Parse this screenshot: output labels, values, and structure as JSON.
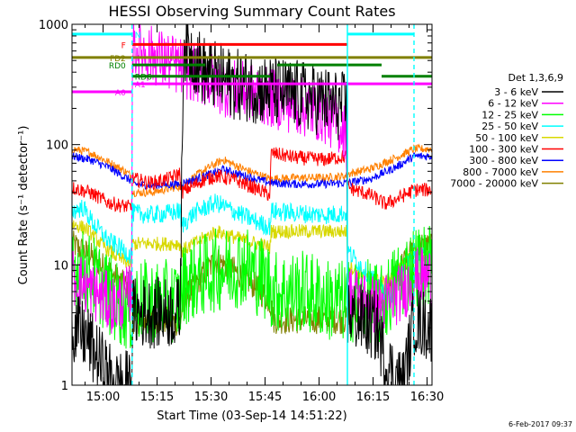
{
  "chart_data": {
    "type": "line",
    "title": "HESSI Observing Summary Count Rates",
    "ylabel": "Count Rate (s⁻¹ detector⁻¹)",
    "xlabel": "Start Time (03-Sep-14 14:51:22)",
    "footer": "6-Feb-2017 09:37",
    "y_scale": "log",
    "ylim": [
      1,
      1000
    ],
    "xlim_minutes": [
      0,
      100
    ],
    "y_ticks": [
      {
        "value": 1,
        "label": "1"
      },
      {
        "value": 10,
        "label": "10"
      },
      {
        "value": 100,
        "label": "100"
      },
      {
        "value": 1000,
        "label": "1000"
      }
    ],
    "x_ticks": [
      {
        "value": 8.63,
        "label": "15:00"
      },
      {
        "value": 23.63,
        "label": "15:15"
      },
      {
        "value": 38.63,
        "label": "15:30"
      },
      {
        "value": 53.63,
        "label": "15:45"
      },
      {
        "value": 68.63,
        "label": "16:00"
      },
      {
        "value": 83.63,
        "label": "16:15"
      },
      {
        "value": 98.63,
        "label": "16:30"
      }
    ],
    "legend": {
      "title": "Det 1,3,6,9",
      "placement": "right",
      "entries": [
        {
          "label": "3 - 6 keV",
          "color": "#000000"
        },
        {
          "label": "6 - 12 keV",
          "color": "#ff00ff"
        },
        {
          "label": "12 - 25 keV",
          "color": "#00ff00"
        },
        {
          "label": "25 - 50 keV",
          "color": "#00ffff"
        },
        {
          "label": "50 - 100 keV",
          "color": "#d8d800"
        },
        {
          "label": "100 - 300 keV",
          "color": "#ff0000"
        },
        {
          "label": "300 - 800 keV",
          "color": "#0000ff"
        },
        {
          "label": "800 - 7000 keV",
          "color": "#ff8000"
        },
        {
          "label": "7000 - 20000 keV",
          "color": "#808000"
        }
      ]
    },
    "flags": [
      {
        "label": "N",
        "color": "#00ffff",
        "y": 830,
        "segments": [
          [
            0,
            16.7
          ],
          [
            76.5,
            95
          ]
        ],
        "label_x": 16.7
      },
      {
        "label": "F",
        "color": "#ff0000",
        "y": 680,
        "segments": [
          [
            16.7,
            76.5
          ]
        ],
        "label_x": 16.7
      },
      {
        "label": "FD2",
        "color": "#808000",
        "y": 530,
        "segments": [
          [
            0,
            100
          ]
        ],
        "label_x": 16.7
      },
      {
        "label": "RD0",
        "color": "#008000",
        "y": 460,
        "segments": [
          [
            16.7,
            37
          ],
          [
            57,
            86
          ]
        ],
        "label_x": 16.7
      },
      {
        "label": "RD6",
        "color": "#008000",
        "y": 370,
        "segments": [
          [
            16.7,
            55
          ],
          [
            86,
            100
          ]
        ],
        "label_x": 16.7
      },
      {
        "label": "A0",
        "color": "#ff00ff",
        "y": 275,
        "segments": [
          [
            0,
            16.7
          ]
        ],
        "label_x": 16.7
      },
      {
        "label": "A1",
        "color": "#ff00ff",
        "y": 320,
        "segments": [
          [
            16.7,
            100
          ]
        ],
        "label_x": 16.7
      }
    ],
    "night_boundaries": [
      {
        "x": 16.7,
        "style": "dashed"
      },
      {
        "x": 76.5,
        "style": "solid"
      },
      {
        "x": 95.0,
        "style": "dashed"
      }
    ],
    "series": [
      {
        "name": "3 - 6 keV",
        "color": "#000000",
        "noise": 0.3,
        "points": [
          [
            0,
            3
          ],
          [
            4,
            2.5
          ],
          [
            8,
            1.5
          ],
          [
            12,
            1.0
          ],
          [
            16.5,
            1.0
          ],
          [
            16.8,
            4
          ],
          [
            25,
            4
          ],
          [
            30,
            4
          ],
          [
            31,
            700
          ],
          [
            37,
            400
          ],
          [
            45,
            320
          ],
          [
            55,
            280
          ],
          [
            65,
            250
          ],
          [
            70,
            230
          ],
          [
            76.3,
            200
          ],
          [
            76.6,
            4
          ],
          [
            85,
            3
          ],
          [
            87,
            1.5
          ],
          [
            92,
            1.0
          ],
          [
            95,
            3.5
          ],
          [
            100,
            3
          ]
        ]
      },
      {
        "name": "6 - 12 keV",
        "color": "#ff00ff",
        "noise": 0.25,
        "points": [
          [
            0,
            8
          ],
          [
            6,
            6
          ],
          [
            12,
            4.5
          ],
          [
            16.5,
            6
          ],
          [
            16.8,
            650
          ],
          [
            22,
            560
          ],
          [
            28,
            470
          ],
          [
            35,
            380
          ],
          [
            42,
            300
          ],
          [
            50,
            270
          ],
          [
            58,
            230
          ],
          [
            65,
            200
          ],
          [
            70,
            180
          ],
          [
            76.3,
            130
          ],
          [
            76.6,
            6
          ],
          [
            85,
            4.5
          ],
          [
            92,
            6
          ],
          [
            95,
            8
          ],
          [
            100,
            8
          ]
        ]
      },
      {
        "name": "12 - 25 keV",
        "color": "#00ff00",
        "noise": 0.35,
        "points": [
          [
            0,
            10
          ],
          [
            6,
            8
          ],
          [
            12,
            5
          ],
          [
            16.5,
            4
          ],
          [
            16.8,
            5
          ],
          [
            25,
            5
          ],
          [
            30,
            5
          ],
          [
            31,
            7
          ],
          [
            40,
            9
          ],
          [
            48,
            10
          ],
          [
            55,
            7
          ],
          [
            56,
            6
          ],
          [
            65,
            6
          ],
          [
            72,
            5
          ],
          [
            76.3,
            5
          ],
          [
            76.6,
            5
          ],
          [
            83,
            5
          ],
          [
            86,
            4.5
          ],
          [
            90,
            7
          ],
          [
            95,
            10
          ],
          [
            100,
            10
          ]
        ]
      },
      {
        "name": "25 - 50 keV",
        "color": "#00ffff",
        "noise": 0.08,
        "points": [
          [
            0,
            28
          ],
          [
            3,
            30
          ],
          [
            6,
            22
          ],
          [
            10,
            16
          ],
          [
            16.5,
            12
          ],
          [
            16.8,
            27
          ],
          [
            22,
            26
          ],
          [
            27,
            27
          ],
          [
            30,
            28
          ],
          [
            30.3,
            21
          ],
          [
            34,
            27
          ],
          [
            40,
            33
          ],
          [
            46,
            27
          ],
          [
            54,
            21
          ],
          [
            55,
            21
          ],
          [
            55.3,
            28
          ],
          [
            62,
            27
          ],
          [
            70,
            26
          ],
          [
            76.3,
            27
          ],
          [
            76.6,
            13
          ],
          [
            83,
            8
          ],
          [
            87,
            6
          ],
          [
            88,
            5
          ],
          [
            92,
            10
          ],
          [
            95,
            12
          ],
          [
            100,
            12
          ]
        ]
      },
      {
        "name": "50 - 100 keV",
        "color": "#d8d800",
        "noise": 0.06,
        "points": [
          [
            0,
            22
          ],
          [
            4,
            20
          ],
          [
            8,
            15
          ],
          [
            12,
            12
          ],
          [
            16.5,
            10
          ],
          [
            16.8,
            15
          ],
          [
            25,
            15
          ],
          [
            30,
            15
          ],
          [
            30.3,
            13
          ],
          [
            40,
            19
          ],
          [
            48,
            16
          ],
          [
            55,
            14
          ],
          [
            55.3,
            19
          ],
          [
            65,
            19
          ],
          [
            76.3,
            19
          ],
          [
            76.6,
            10
          ],
          [
            82,
            8
          ],
          [
            87,
            7
          ],
          [
            92,
            10
          ],
          [
            95,
            12
          ],
          [
            100,
            12
          ]
        ]
      },
      {
        "name": "100 - 300 keV",
        "color": "#ff0000",
        "noise": 0.06,
        "points": [
          [
            0,
            44
          ],
          [
            5,
            40
          ],
          [
            10,
            33
          ],
          [
            14,
            31
          ],
          [
            16.5,
            30
          ],
          [
            16.8,
            52
          ],
          [
            22,
            48
          ],
          [
            27,
            52
          ],
          [
            30,
            58
          ],
          [
            30.3,
            40
          ],
          [
            36,
            50
          ],
          [
            40,
            55
          ],
          [
            46,
            50
          ],
          [
            52,
            42
          ],
          [
            55,
            38
          ],
          [
            55.3,
            85
          ],
          [
            62,
            78
          ],
          [
            70,
            75
          ],
          [
            76.3,
            80
          ],
          [
            76.6,
            44
          ],
          [
            83,
            38
          ],
          [
            87,
            32
          ],
          [
            90,
            35
          ],
          [
            95,
            42
          ],
          [
            100,
            42
          ]
        ]
      },
      {
        "name": "300 - 800 keV",
        "color": "#0000ff",
        "noise": 0.035,
        "points": [
          [
            0,
            80
          ],
          [
            5,
            75
          ],
          [
            10,
            65
          ],
          [
            14,
            55
          ],
          [
            16.5,
            50
          ],
          [
            16.8,
            47
          ],
          [
            22,
            46
          ],
          [
            30,
            47
          ],
          [
            37,
            55
          ],
          [
            42,
            62
          ],
          [
            48,
            55
          ],
          [
            55,
            48
          ],
          [
            62,
            47
          ],
          [
            70,
            47
          ],
          [
            76.3,
            48
          ],
          [
            76.6,
            48
          ],
          [
            83,
            52
          ],
          [
            90,
            65
          ],
          [
            95,
            80
          ],
          [
            100,
            80
          ]
        ]
      },
      {
        "name": "800 - 7000 keV",
        "color": "#ff8000",
        "noise": 0.035,
        "points": [
          [
            0,
            92
          ],
          [
            5,
            86
          ],
          [
            10,
            72
          ],
          [
            14,
            62
          ],
          [
            16.5,
            55
          ],
          [
            16.8,
            40
          ],
          [
            22,
            40
          ],
          [
            30,
            45
          ],
          [
            37,
            62
          ],
          [
            42,
            75
          ],
          [
            48,
            62
          ],
          [
            55,
            52
          ],
          [
            62,
            53
          ],
          [
            70,
            53
          ],
          [
            76.3,
            55
          ],
          [
            76.6,
            57
          ],
          [
            83,
            63
          ],
          [
            90,
            78
          ],
          [
            95,
            92
          ],
          [
            100,
            92
          ]
        ]
      },
      {
        "name": "7000 - 20000 keV",
        "color": "#808000",
        "noise": 0.12,
        "points": [
          [
            0,
            15
          ],
          [
            5,
            12
          ],
          [
            10,
            9
          ],
          [
            14,
            7
          ],
          [
            16.5,
            6
          ],
          [
            16.8,
            3.5
          ],
          [
            25,
            3.5
          ],
          [
            30,
            3.3
          ],
          [
            31,
            5
          ],
          [
            36,
            8
          ],
          [
            40,
            11
          ],
          [
            45,
            9
          ],
          [
            50,
            7
          ],
          [
            55,
            5
          ],
          [
            56,
            3.5
          ],
          [
            66,
            3.5
          ],
          [
            76.3,
            3.5
          ],
          [
            76.6,
            4
          ],
          [
            85,
            5
          ],
          [
            90,
            8
          ],
          [
            95,
            14
          ],
          [
            100,
            14
          ]
        ]
      }
    ]
  }
}
